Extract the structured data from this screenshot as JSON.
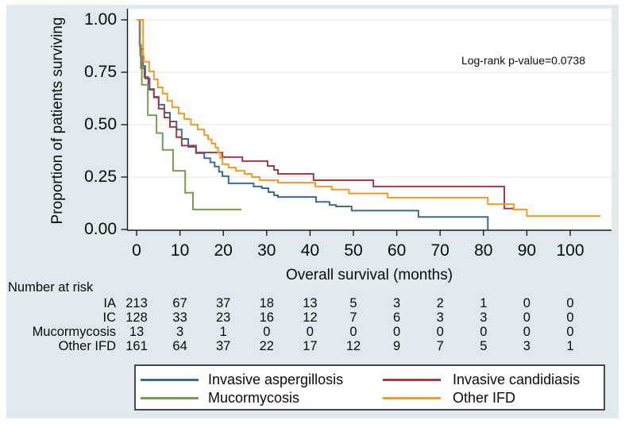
{
  "chart_data": {
    "type": "line",
    "subtype": "kaplan-meier-step-survival",
    "title": "",
    "xlabel": "Overall survival (months)",
    "ylabel": "Proportion of patients surviving",
    "annotation": "Log-rank p-value=0.0738",
    "xlim": [
      0,
      109.5
    ],
    "ylim": [
      0,
      1.0
    ],
    "grid": "horizontal",
    "legend_position": "bottom",
    "x_ticks": [
      {
        "v": 0,
        "label": "0"
      },
      {
        "v": 10,
        "label": "10"
      },
      {
        "v": 20,
        "label": "20"
      },
      {
        "v": 30,
        "label": "30"
      },
      {
        "v": 40,
        "label": "40"
      },
      {
        "v": 50,
        "label": "50"
      },
      {
        "v": 60,
        "label": "60"
      },
      {
        "v": 70,
        "label": "70"
      },
      {
        "v": 80,
        "label": "80"
      },
      {
        "v": 90,
        "label": "90"
      },
      {
        "v": 100,
        "label": "100"
      }
    ],
    "y_ticks": [
      {
        "v": 0.0,
        "label": "0.00"
      },
      {
        "v": 0.25,
        "label": "0.25"
      },
      {
        "v": 0.5,
        "label": "0.50"
      },
      {
        "v": 0.75,
        "label": "0.75"
      },
      {
        "v": 1.0,
        "label": "1.00"
      }
    ],
    "series": [
      {
        "name": "Invasive aspergillosis",
        "color": "#3d6a96",
        "end_t": 81,
        "steps": [
          [
            0,
            1.0
          ],
          [
            0.8,
            0.86
          ],
          [
            1.5,
            0.78
          ],
          [
            2,
            0.72
          ],
          [
            3,
            0.67
          ],
          [
            4,
            0.633
          ],
          [
            5.1,
            0.595
          ],
          [
            6.4,
            0.557
          ],
          [
            7.7,
            0.515
          ],
          [
            9.2,
            0.477
          ],
          [
            10.4,
            0.432
          ],
          [
            11.9,
            0.394
          ],
          [
            13.7,
            0.364
          ],
          [
            15.6,
            0.34
          ],
          [
            17,
            0.32
          ],
          [
            18,
            0.3
          ],
          [
            19,
            0.275
          ],
          [
            19.8,
            0.254
          ],
          [
            21.2,
            0.22
          ],
          [
            27,
            0.205
          ],
          [
            28.9,
            0.197
          ],
          [
            30.4,
            0.178
          ],
          [
            31.7,
            0.163
          ],
          [
            32.6,
            0.155
          ],
          [
            41.4,
            0.132
          ],
          [
            44.5,
            0.117
          ],
          [
            46,
            0.11
          ],
          [
            49.6,
            0.09
          ],
          [
            65,
            0.06
          ],
          [
            81,
            0.0
          ]
        ]
      },
      {
        "name": "Invasive candidiasis",
        "color": "#9d3e46",
        "end_t": 87.2,
        "steps": [
          [
            0,
            1.0
          ],
          [
            0.7,
            0.88
          ],
          [
            1,
            0.77
          ],
          [
            1.8,
            0.727
          ],
          [
            2.7,
            0.667
          ],
          [
            4,
            0.63
          ],
          [
            5.1,
            0.576
          ],
          [
            6.4,
            0.534
          ],
          [
            7.7,
            0.489
          ],
          [
            9.2,
            0.44
          ],
          [
            10.4,
            0.4
          ],
          [
            13.7,
            0.367
          ],
          [
            19.8,
            0.345
          ],
          [
            24.4,
            0.326
          ],
          [
            30.2,
            0.303
          ],
          [
            31.7,
            0.284
          ],
          [
            32.6,
            0.265
          ],
          [
            40.8,
            0.235
          ],
          [
            54.6,
            0.205
          ],
          [
            84.8,
            0.1
          ]
        ]
      },
      {
        "name": "Mucormycosis",
        "color": "#7a9b52",
        "end_t": 24.2,
        "steps": [
          [
            0,
            1.0
          ],
          [
            0.8,
            0.83
          ],
          [
            1.2,
            0.69
          ],
          [
            2.6,
            0.545
          ],
          [
            4.6,
            0.46
          ],
          [
            6,
            0.38
          ],
          [
            8.4,
            0.28
          ],
          [
            11.2,
            0.175
          ],
          [
            13,
            0.095
          ]
        ]
      },
      {
        "name": "Other IFD",
        "color": "#f09a28",
        "end_t": 107,
        "steps": [
          [
            0,
            1.0
          ],
          [
            1.5,
            0.83
          ],
          [
            1.7,
            0.8
          ],
          [
            2.9,
            0.754
          ],
          [
            4,
            0.716
          ],
          [
            4.9,
            0.678
          ],
          [
            6,
            0.648
          ],
          [
            7.1,
            0.614
          ],
          [
            8.2,
            0.583
          ],
          [
            9.7,
            0.553
          ],
          [
            11,
            0.527
          ],
          [
            12.5,
            0.5
          ],
          [
            14.1,
            0.477
          ],
          [
            15.6,
            0.45
          ],
          [
            16.5,
            0.43
          ],
          [
            17.3,
            0.41
          ],
          [
            18.2,
            0.39
          ],
          [
            18.8,
            0.365
          ],
          [
            19.3,
            0.34
          ],
          [
            19.8,
            0.311
          ],
          [
            21.2,
            0.295
          ],
          [
            22.9,
            0.28
          ],
          [
            24.9,
            0.265
          ],
          [
            26.6,
            0.25
          ],
          [
            28.4,
            0.235
          ],
          [
            32.6,
            0.223
          ],
          [
            41.2,
            0.205
          ],
          [
            45,
            0.19
          ],
          [
            49,
            0.172
          ],
          [
            57.9,
            0.152
          ],
          [
            81,
            0.121
          ],
          [
            87,
            0.095
          ],
          [
            90,
            0.064
          ]
        ]
      }
    ],
    "risk_table": {
      "header": "Number at risk",
      "time_points": [
        0,
        10,
        20,
        30,
        40,
        50,
        60,
        70,
        80,
        90,
        100
      ],
      "rows": [
        {
          "label": "IA",
          "values": [
            213,
            67,
            37,
            18,
            13,
            5,
            3,
            2,
            1,
            0,
            0
          ]
        },
        {
          "label": "IC",
          "values": [
            128,
            33,
            23,
            16,
            12,
            7,
            6,
            3,
            3,
            0,
            0
          ]
        },
        {
          "label": "Mucormycosis",
          "values": [
            13,
            3,
            1,
            0,
            0,
            0,
            0,
            0,
            0,
            0,
            0
          ]
        },
        {
          "label": "Other IFD",
          "values": [
            161,
            64,
            37,
            22,
            17,
            12,
            9,
            7,
            5,
            3,
            1
          ]
        }
      ]
    },
    "colors": {
      "panel_background": "#e0eaee",
      "plot_background": "#ffffff",
      "gridline": "#e4edf1",
      "axis": "#1a1a1a"
    }
  }
}
